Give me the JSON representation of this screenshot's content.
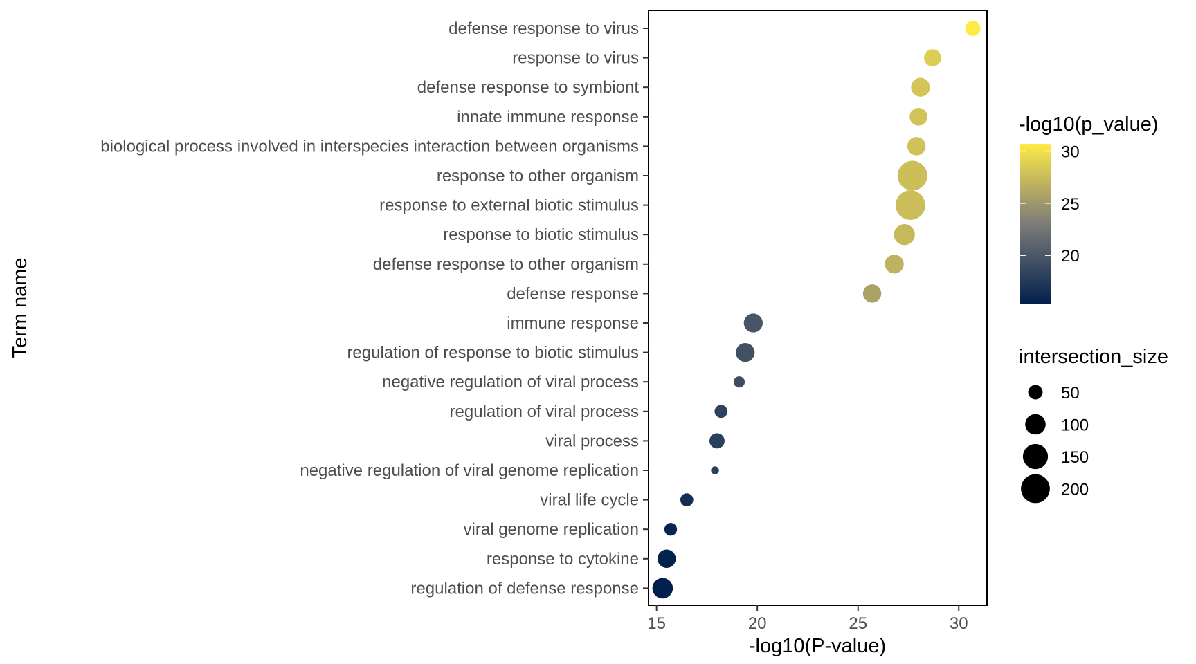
{
  "chart_data": {
    "type": "scatter",
    "xlabel": "-log10(P-value)",
    "ylabel": "Term name",
    "xlim": [
      14.6,
      31.4
    ],
    "xticks": [
      15,
      20,
      25,
      30
    ],
    "grid": false,
    "legend_placement": "right",
    "color_legend": {
      "title": "-log10(p_value)",
      "ticks": [
        20,
        25,
        30
      ],
      "range": [
        15.3,
        30.7
      ],
      "low_color": "#00204D",
      "mid_color": "#7C7B78",
      "high_color": "#FFEA46"
    },
    "size_legend": {
      "title": "intersection_size",
      "values": [
        50,
        100,
        150,
        200
      ],
      "color": "#000000"
    },
    "points": [
      {
        "term": "defense response to virus",
        "x": 30.7,
        "size": 55
      },
      {
        "term": "response to virus",
        "x": 28.7,
        "size": 70
      },
      {
        "term": "defense response to symbiont",
        "x": 28.1,
        "size": 85
      },
      {
        "term": "innate immune response",
        "x": 28.0,
        "size": 75
      },
      {
        "term": "biological process involved in interspecies interaction between organisms",
        "x": 27.9,
        "size": 80
      },
      {
        "term": "response to other organism",
        "x": 27.7,
        "size": 210
      },
      {
        "term": "response to external biotic stimulus",
        "x": 27.6,
        "size": 210
      },
      {
        "term": "response to biotic stimulus",
        "x": 27.3,
        "size": 105
      },
      {
        "term": "defense response to other organism",
        "x": 26.8,
        "size": 85
      },
      {
        "term": "defense response",
        "x": 25.7,
        "size": 80
      },
      {
        "term": "immune response",
        "x": 19.8,
        "size": 85
      },
      {
        "term": "regulation of response to biotic stimulus",
        "x": 19.4,
        "size": 85
      },
      {
        "term": "negative regulation of viral process",
        "x": 19.1,
        "size": 30
      },
      {
        "term": "regulation of viral process",
        "x": 18.2,
        "size": 40
      },
      {
        "term": "viral process",
        "x": 18.0,
        "size": 55
      },
      {
        "term": "negative regulation of viral genome replication",
        "x": 17.9,
        "size": 15
      },
      {
        "term": "viral life cycle",
        "x": 16.5,
        "size": 40
      },
      {
        "term": "viral genome replication",
        "x": 15.7,
        "size": 38
      },
      {
        "term": "response to cytokine",
        "x": 15.5,
        "size": 80
      },
      {
        "term": "regulation of defense response",
        "x": 15.3,
        "size": 100
      }
    ]
  },
  "page": {
    "background": "#ffffff"
  }
}
